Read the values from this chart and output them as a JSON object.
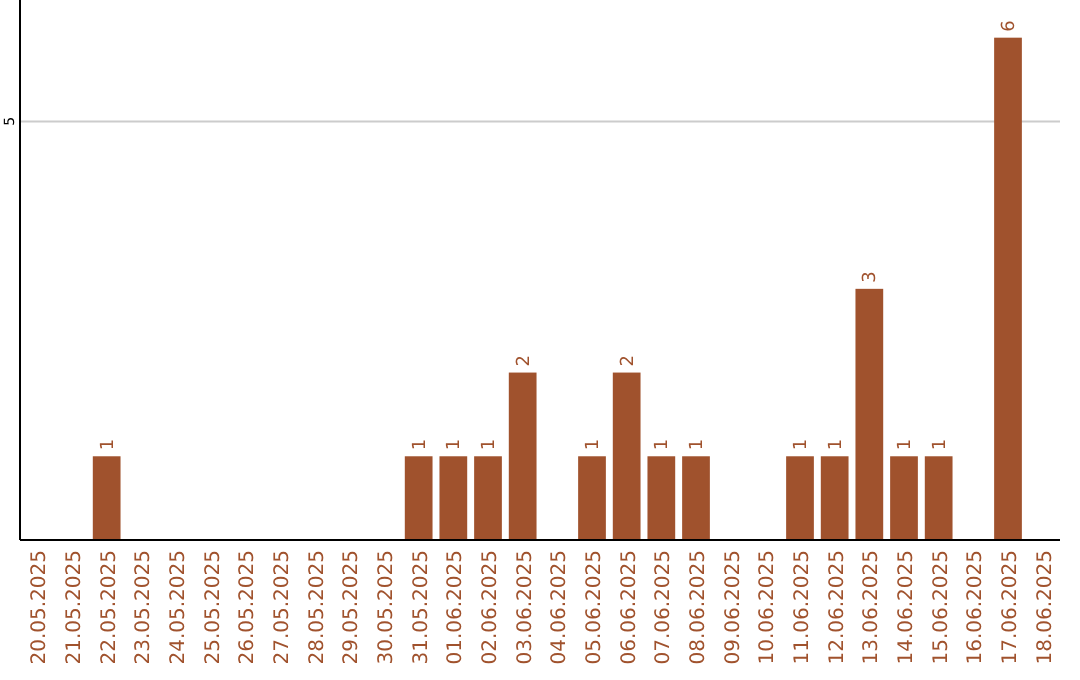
{
  "chart_data": {
    "type": "bar",
    "categories": [
      "20.05.2025",
      "21.05.2025",
      "22.05.2025",
      "23.05.2025",
      "24.05.2025",
      "25.05.2025",
      "26.05.2025",
      "27.05.2025",
      "28.05.2025",
      "29.05.2025",
      "30.05.2025",
      "31.05.2025",
      "01.06.2025",
      "02.06.2025",
      "03.06.2025",
      "04.06.2025",
      "05.06.2025",
      "06.06.2025",
      "07.06.2025",
      "08.06.2025",
      "09.06.2025",
      "10.06.2025",
      "11.06.2025",
      "12.06.2025",
      "13.06.2025",
      "14.06.2025",
      "15.06.2025",
      "16.06.2025",
      "17.06.2025",
      "18.06.2025"
    ],
    "values": [
      0,
      0,
      1,
      0,
      0,
      0,
      0,
      0,
      0,
      0,
      0,
      1,
      1,
      1,
      2,
      0,
      1,
      2,
      1,
      1,
      0,
      0,
      1,
      1,
      3,
      1,
      1,
      0,
      6,
      0
    ],
    "value_labels": [
      null,
      null,
      "1",
      null,
      null,
      null,
      null,
      null,
      null,
      null,
      null,
      "1",
      "1",
      "1",
      "2",
      null,
      "1",
      "2",
      "1",
      "1",
      null,
      null,
      "1",
      "1",
      "3",
      "1",
      "1",
      null,
      "6",
      null
    ],
    "color": "#a0522d",
    "ylim": [
      0,
      6.45
    ],
    "yticks": [
      5
    ],
    "grid": "y"
  }
}
